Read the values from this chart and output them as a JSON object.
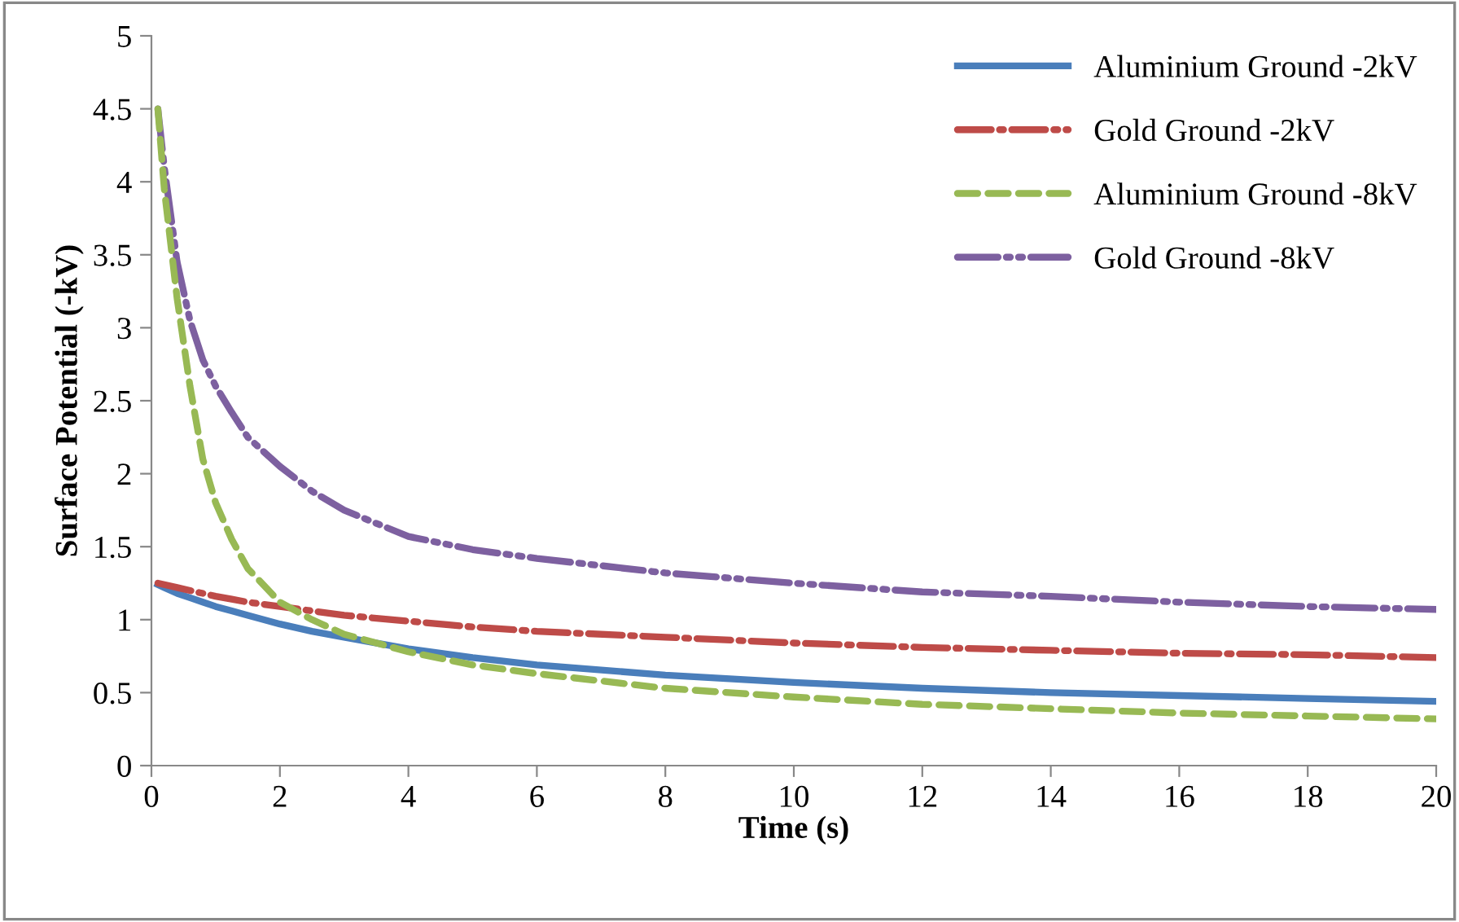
{
  "chart_data": {
    "type": "line",
    "xlabel": "Time (s)",
    "ylabel": "Surface Potential (-kV)",
    "x": [
      0.1,
      0.2,
      0.4,
      0.6,
      0.8,
      1,
      1.25,
      1.5,
      2,
      2.5,
      3,
      4,
      5,
      6,
      8,
      10,
      12,
      14,
      16,
      18,
      20
    ],
    "series": [
      {
        "name": "Aluminium Ground -2kV",
        "color": "#4a7ebb",
        "line_style": "solid",
        "values": [
          1.24,
          1.22,
          1.18,
          1.15,
          1.12,
          1.09,
          1.06,
          1.03,
          0.97,
          0.92,
          0.88,
          0.8,
          0.74,
          0.69,
          0.62,
          0.57,
          0.53,
          0.5,
          0.48,
          0.46,
          0.44
        ]
      },
      {
        "name": "Gold Ground -2kV",
        "color": "#be4b48",
        "line_style": "dashdot",
        "values": [
          1.25,
          1.24,
          1.22,
          1.2,
          1.18,
          1.16,
          1.14,
          1.12,
          1.09,
          1.06,
          1.03,
          0.99,
          0.95,
          0.92,
          0.88,
          0.84,
          0.81,
          0.79,
          0.77,
          0.76,
          0.74
        ]
      },
      {
        "name": "Aluminium Ground -8kV",
        "color": "#98b954",
        "line_style": "dashed",
        "values": [
          4.5,
          3.95,
          3.2,
          2.6,
          2.1,
          1.8,
          1.55,
          1.35,
          1.12,
          1.0,
          0.9,
          0.78,
          0.69,
          0.63,
          0.53,
          0.47,
          0.42,
          0.39,
          0.36,
          0.34,
          0.32
        ]
      },
      {
        "name": "Gold Ground -8kV",
        "color": "#7d60a0",
        "line_style": "dashdotdot",
        "values": [
          4.5,
          4.1,
          3.45,
          3.05,
          2.78,
          2.6,
          2.42,
          2.25,
          2.05,
          1.88,
          1.75,
          1.57,
          1.48,
          1.42,
          1.32,
          1.25,
          1.19,
          1.16,
          1.12,
          1.09,
          1.07
        ]
      }
    ],
    "xlim": [
      0,
      20
    ],
    "xticks": [
      0,
      2,
      4,
      6,
      8,
      10,
      12,
      14,
      16,
      18,
      20
    ],
    "ylim": [
      0,
      5
    ],
    "yticks": [
      0,
      0.5,
      1,
      1.5,
      2,
      2.5,
      3,
      3.5,
      4,
      4.5,
      5
    ],
    "grid": false,
    "legend": "top right",
    "marker": "none"
  }
}
